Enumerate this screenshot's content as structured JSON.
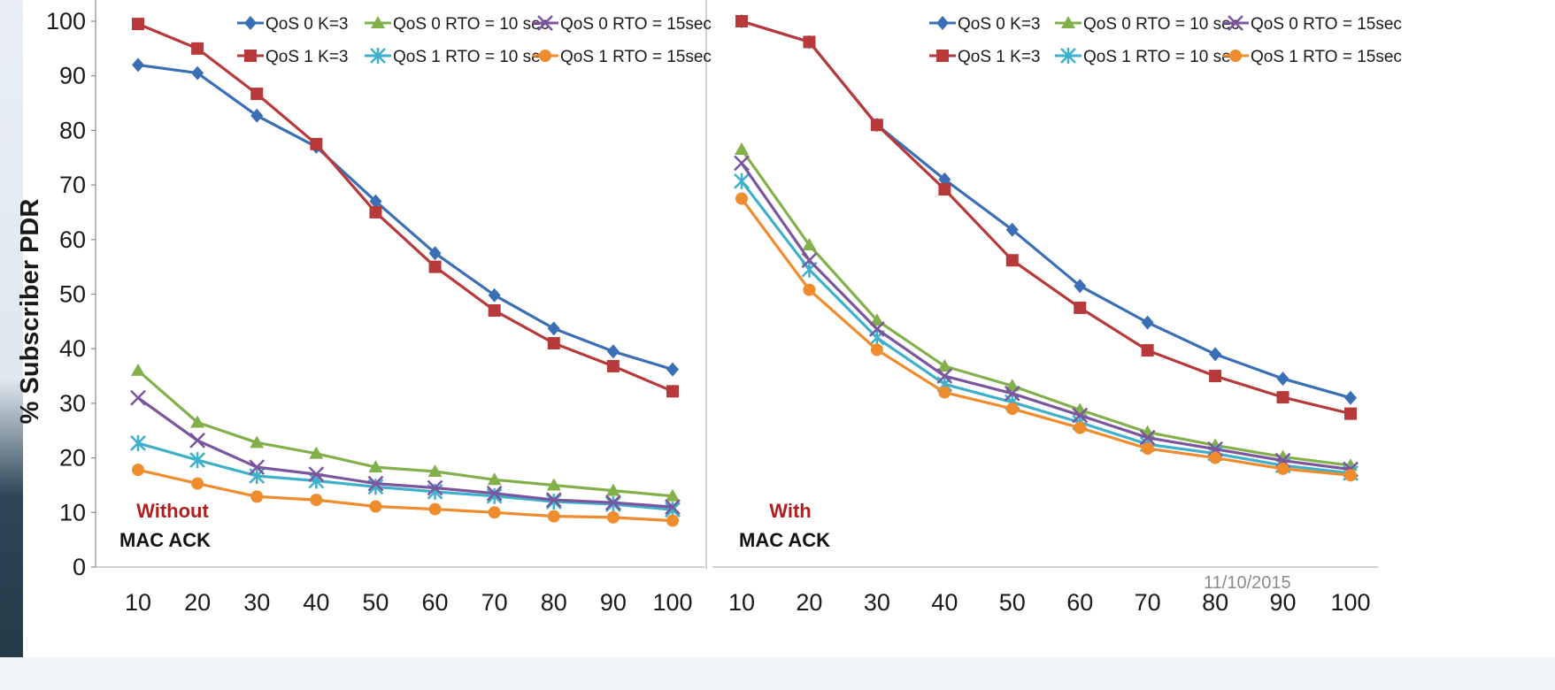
{
  "chart_data": [
    {
      "type": "line",
      "ylabel": "% Subscriber PDR",
      "xlabel": "",
      "ylim": [
        0,
        100
      ],
      "yticks": [
        "0",
        "10",
        "20",
        "30",
        "40",
        "50",
        "60",
        "70",
        "80",
        "90",
        "100"
      ],
      "x": [
        10,
        20,
        30,
        40,
        50,
        60,
        70,
        80,
        90,
        100
      ],
      "xtick_labels": [
        "10",
        "20",
        "30",
        "40",
        "50",
        "60",
        "70",
        "80",
        "90",
        "100"
      ],
      "grid": false,
      "legend_position": "top-right",
      "annotation": [
        "Without",
        "MAC ACK"
      ],
      "series": [
        {
          "name": "QoS 0 K=3",
          "color": "#3a6fb5",
          "marker": "diamond",
          "values": [
            92,
            90.5,
            82.7,
            77,
            67,
            57.5,
            49.8,
            43.7,
            39.5,
            36.2
          ]
        },
        {
          "name": "QoS 1 K=3",
          "color": "#b8393a",
          "marker": "square",
          "values": [
            99.5,
            95,
            86.7,
            77.5,
            65,
            55,
            47,
            41,
            36.8,
            32.2
          ]
        },
        {
          "name": "QoS 0 RTO = 10 sec",
          "color": "#82b04b",
          "marker": "triangle",
          "values": [
            36,
            26.5,
            22.8,
            20.8,
            18.3,
            17.5,
            16,
            15,
            14,
            13
          ]
        },
        {
          "name": "QoS 1 RTO = 10 sec",
          "color": "#3fb0cc",
          "marker": "asterisk",
          "values": [
            22.7,
            19.6,
            16.7,
            15.8,
            14.7,
            13.8,
            13,
            12,
            11.5,
            10.5
          ]
        },
        {
          "name": "QoS 0 RTO = 15sec",
          "color": "#7b559e",
          "marker": "x",
          "values": [
            31,
            23.2,
            18.3,
            17,
            15.3,
            14.5,
            13.5,
            12.3,
            11.8,
            11
          ]
        },
        {
          "name": "QoS 1 RTO = 15sec",
          "color": "#ee8c2e",
          "marker": "circle",
          "values": [
            17.8,
            15.3,
            12.9,
            12.3,
            11.1,
            10.6,
            10,
            9.3,
            9.1,
            8.5
          ]
        }
      ]
    },
    {
      "type": "line",
      "ylabel": "",
      "xlabel": "",
      "ylim": [
        0,
        100
      ],
      "x": [
        10,
        20,
        30,
        40,
        50,
        60,
        70,
        80,
        90,
        100
      ],
      "xtick_labels": [
        "10",
        "20",
        "30",
        "40",
        "50",
        "60",
        "70",
        "80",
        "90",
        "100"
      ],
      "grid": false,
      "legend_position": "top-right",
      "annotation": [
        "With",
        "MAC ACK"
      ],
      "series": [
        {
          "name": "QoS 0 K=3",
          "color": "#3a6fb5",
          "marker": "diamond",
          "values": [
            100,
            96.2,
            81,
            71,
            61.8,
            51.5,
            44.8,
            39,
            34.5,
            31
          ]
        },
        {
          "name": "QoS 1 K=3",
          "color": "#b8393a",
          "marker": "square",
          "values": [
            100,
            96.2,
            81,
            69.2,
            56.2,
            47.5,
            39.7,
            35,
            31.1,
            28.1
          ]
        },
        {
          "name": "QoS 0 RTO = 10 sec",
          "color": "#82b04b",
          "marker": "triangle",
          "values": [
            76.5,
            59,
            45.2,
            36.8,
            33.2,
            28.8,
            24.7,
            22.3,
            20.2,
            18.6
          ]
        },
        {
          "name": "QoS 1 RTO = 10 sec",
          "color": "#3fb0cc",
          "marker": "asterisk",
          "values": [
            70.7,
            54.5,
            42,
            33.5,
            30.2,
            26.5,
            22.5,
            20.8,
            18.6,
            17.2
          ]
        },
        {
          "name": "QoS 0 RTO = 15sec",
          "color": "#7b559e",
          "marker": "x",
          "values": [
            74,
            56.2,
            43.6,
            35,
            31.8,
            27.8,
            23.7,
            21.6,
            19.5,
            17.9
          ]
        },
        {
          "name": "QoS 1 RTO = 15sec",
          "color": "#ee8c2e",
          "marker": "circle",
          "values": [
            67.5,
            50.8,
            39.8,
            32,
            29,
            25.5,
            21.7,
            20,
            18,
            16.8
          ]
        }
      ]
    }
  ],
  "footer": {
    "date": "11/10/2015"
  }
}
